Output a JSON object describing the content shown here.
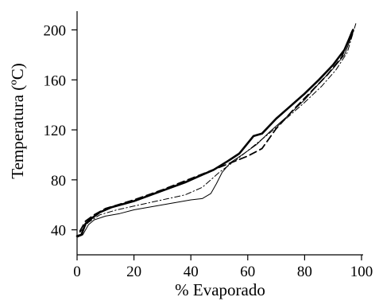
{
  "chart_data": {
    "type": "line",
    "title": "",
    "xlabel": "% Evaporado",
    "ylabel": "Temperatura (ºC)",
    "xlim": [
      0,
      100
    ],
    "ylim": [
      20,
      215
    ],
    "x_ticks": [
      0,
      20,
      40,
      60,
      80,
      100
    ],
    "y_ticks": [
      40,
      80,
      120,
      160,
      200
    ],
    "grid": false,
    "legend": "none",
    "series": [
      {
        "style": "thick-solid",
        "points": [
          [
            0,
            35
          ],
          [
            1.5,
            36
          ],
          [
            3,
            45
          ],
          [
            5,
            49
          ],
          [
            8,
            54
          ],
          [
            12,
            58
          ],
          [
            20,
            63
          ],
          [
            26,
            68
          ],
          [
            32,
            73
          ],
          [
            38,
            78
          ],
          [
            43,
            83
          ],
          [
            48,
            88
          ],
          [
            53,
            95
          ],
          [
            57,
            101
          ],
          [
            62,
            115
          ],
          [
            65,
            117
          ],
          [
            70,
            129
          ],
          [
            75,
            139
          ],
          [
            80,
            149
          ],
          [
            85,
            160
          ],
          [
            90,
            172
          ],
          [
            94,
            184
          ],
          [
            97,
            200
          ]
        ]
      },
      {
        "style": "thin-solid",
        "points": [
          [
            0,
            34
          ],
          [
            2,
            36
          ],
          [
            4,
            44
          ],
          [
            6,
            48
          ],
          [
            10,
            51
          ],
          [
            15,
            53
          ],
          [
            20,
            56
          ],
          [
            25,
            58
          ],
          [
            30,
            60
          ],
          [
            35,
            62
          ],
          [
            40,
            64
          ],
          [
            44,
            65
          ],
          [
            47,
            69
          ],
          [
            49,
            77
          ],
          [
            51,
            86
          ],
          [
            54,
            94
          ],
          [
            58,
            100
          ],
          [
            63,
            108
          ],
          [
            68,
            119
          ],
          [
            74,
            131
          ],
          [
            80,
            144
          ],
          [
            85,
            157
          ],
          [
            90,
            169
          ],
          [
            94,
            180
          ],
          [
            97,
            198
          ]
        ]
      },
      {
        "style": "dashed",
        "points": [
          [
            1,
            39
          ],
          [
            3,
            47
          ],
          [
            6,
            52
          ],
          [
            10,
            57
          ],
          [
            20,
            64
          ],
          [
            30,
            72
          ],
          [
            40,
            81
          ],
          [
            50,
            90
          ],
          [
            60,
            99
          ],
          [
            65,
            105
          ],
          [
            70,
            121
          ],
          [
            76,
            136
          ],
          [
            82,
            150
          ],
          [
            88,
            164
          ],
          [
            93,
            178
          ],
          [
            97,
            201
          ]
        ]
      },
      {
        "style": "dash-dot",
        "points": [
          [
            1,
            38
          ],
          [
            4,
            46
          ],
          [
            8,
            52
          ],
          [
            14,
            56
          ],
          [
            20,
            59
          ],
          [
            26,
            62
          ],
          [
            32,
            65
          ],
          [
            38,
            68
          ],
          [
            44,
            74
          ],
          [
            50,
            86
          ],
          [
            56,
            96
          ],
          [
            62,
            107
          ],
          [
            68,
            118
          ],
          [
            74,
            130
          ],
          [
            80,
            142
          ],
          [
            86,
            155
          ],
          [
            91,
            168
          ],
          [
            95,
            182
          ],
          [
            98,
            205
          ]
        ]
      }
    ]
  }
}
